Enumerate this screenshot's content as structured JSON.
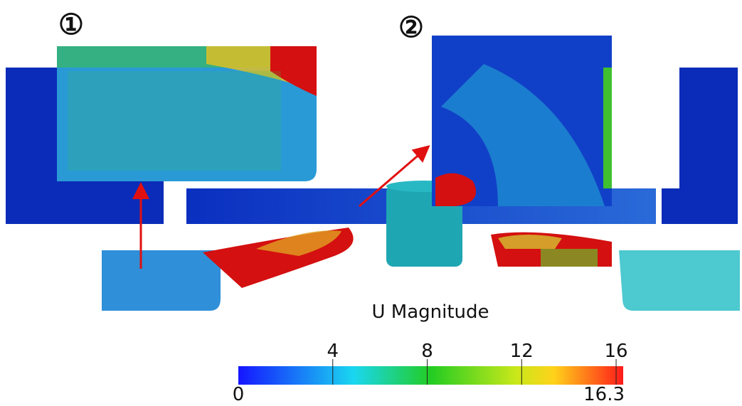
{
  "panels": [
    {
      "label": "①"
    },
    {
      "label": "②"
    }
  ],
  "colorbar": {
    "title": "U Magnitude",
    "min": 0,
    "max": 16.3,
    "ticks": [
      4,
      8,
      12,
      16
    ]
  }
}
